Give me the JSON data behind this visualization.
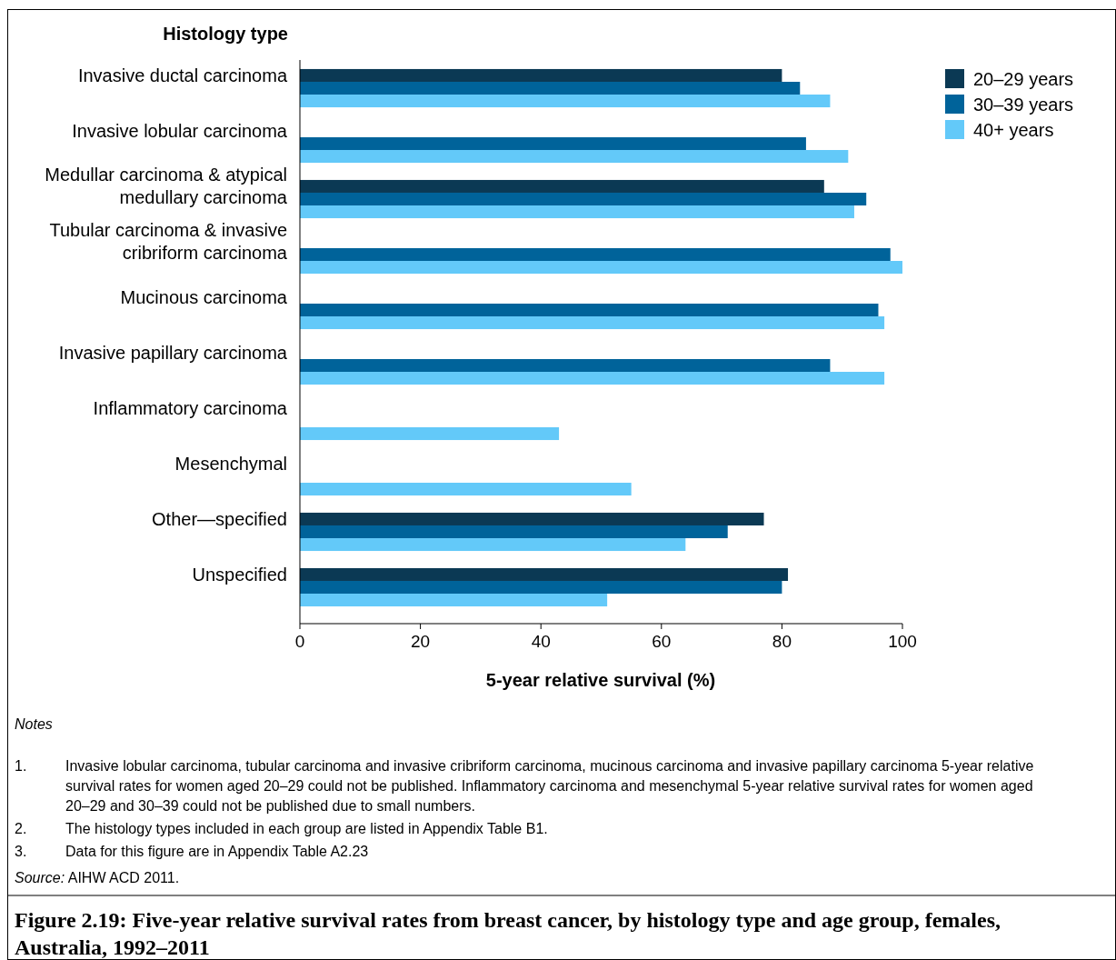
{
  "chart_data": {
    "type": "bar",
    "orientation": "horizontal",
    "title": "Figure 2.19: Five-year relative survival rates from breast cancer, by histology type and age group, females, Australia, 1992–2011",
    "xlabel": "5-year relative survival (%)",
    "ylabel": "Histology type",
    "categories": [
      "Invasive ductal carcinoma",
      "Invasive lobular carcinoma",
      "Medullar carcinoma & atypical medullary carcinoma",
      "Tubular carcinoma & invasive cribriform carcinoma",
      "Mucinous carcinoma",
      "Invasive papillary carcinoma",
      "Inflammatory carcinoma",
      "Mesenchymal",
      "Other—specified",
      "Unspecified"
    ],
    "series": [
      {
        "name": "20–29 years",
        "color": "#0b3954",
        "values": [
          80,
          null,
          87,
          null,
          null,
          null,
          null,
          null,
          77,
          81
        ]
      },
      {
        "name": "30–39 years",
        "color": "#00639a",
        "values": [
          83,
          84,
          94,
          98,
          96,
          88,
          null,
          null,
          71,
          80
        ]
      },
      {
        "name": "40+ years",
        "color": "#63c9f9",
        "values": [
          88,
          91,
          92,
          100,
          97,
          97,
          43,
          55,
          64,
          51
        ]
      }
    ],
    "xlim": [
      0,
      100
    ],
    "xticks": [
      0,
      20,
      40,
      60,
      80,
      100
    ],
    "grid": false,
    "legend": "top right",
    "annotations": [
      "Notes",
      "1. Invasive lobular carcinoma, tubular carcinoma and invasive cribriform carcinoma, mucinous carcinoma and invasive papillary carcinoma 5-year relative survival rates for women aged 20–29 could not be published. Inflammatory carcinoma and mesenchymal 5-year relative survival rates for women aged 20–29 and 30–39 could not be published due to small numbers.",
      "2. The histology types included in each group are listed in Appendix Table B1.",
      "3. Data for this figure are in Appendix Table A2.23",
      "Source: AIHW ACD 2011."
    ]
  }
}
